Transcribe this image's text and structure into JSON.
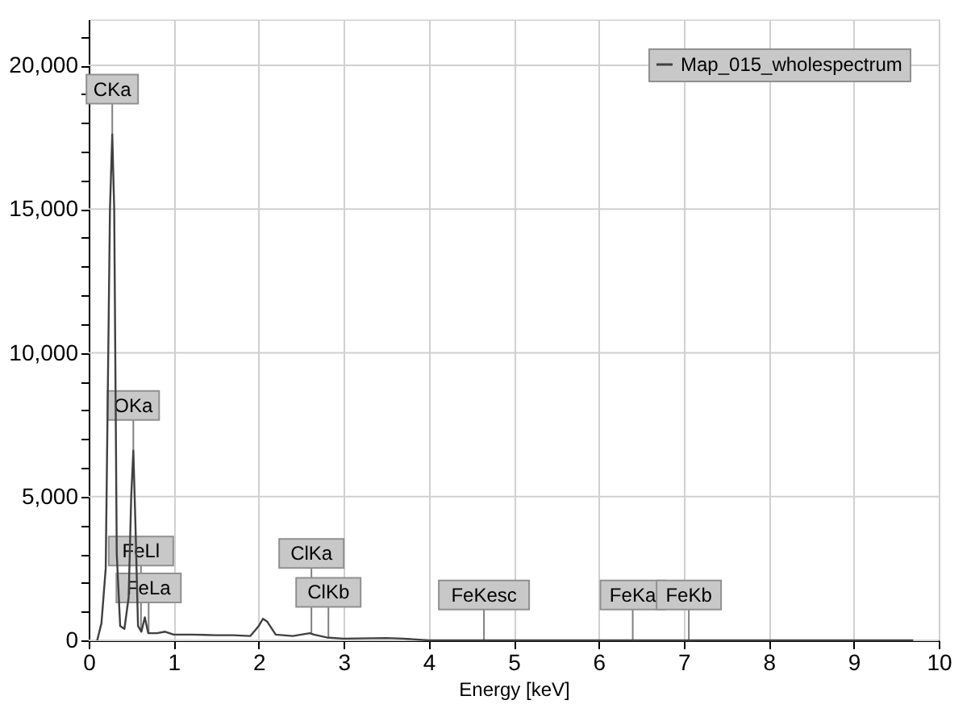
{
  "chart_data": {
    "type": "line",
    "xlabel": "Energy [keV]",
    "x": [
      0.1,
      0.15,
      0.2,
      0.25,
      0.277,
      0.3,
      0.33,
      0.37,
      0.42,
      0.47,
      0.5,
      0.525,
      0.55,
      0.58,
      0.62,
      0.66,
      0.7,
      0.8,
      0.9,
      1.0,
      1.2,
      1.5,
      1.7,
      1.9,
      2.0,
      2.05,
      2.1,
      2.2,
      2.4,
      2.6,
      2.65,
      2.8,
      3.0,
      3.5,
      3.7,
      4.0,
      5.0,
      6.0,
      7.0,
      8.0,
      9.0,
      9.7
    ],
    "series": [
      {
        "name": "Map_015_wholespectrum",
        "color": "#404040",
        "values": [
          0,
          600,
          2500,
          15000,
          17600,
          15000,
          3000,
          500,
          400,
          1500,
          5000,
          6600,
          4000,
          500,
          300,
          800,
          250,
          250,
          300,
          200,
          200,
          180,
          180,
          150,
          500,
          750,
          650,
          200,
          150,
          250,
          200,
          100,
          60,
          80,
          60,
          0,
          0,
          0,
          0,
          0,
          0,
          0
        ]
      }
    ],
    "xlim": [
      0,
      10
    ],
    "xticks": [
      0,
      1,
      2,
      3,
      4,
      5,
      6,
      7,
      8,
      9,
      10
    ],
    "ylim": [
      0,
      21600
    ],
    "yticks": [
      {
        "value": 0,
        "label": "0"
      },
      {
        "value": 1000,
        "label": null
      },
      {
        "value": 2000,
        "label": null
      },
      {
        "value": 3000,
        "label": null
      },
      {
        "value": 4000,
        "label": null
      },
      {
        "value": 5000,
        "label": "5,000"
      },
      {
        "value": 6000,
        "label": null
      },
      {
        "value": 7000,
        "label": null
      },
      {
        "value": 8000,
        "label": null
      },
      {
        "value": 9000,
        "label": null
      },
      {
        "value": 10000,
        "label": "10,000"
      },
      {
        "value": 11000,
        "label": null
      },
      {
        "value": 12000,
        "label": null
      },
      {
        "value": 13000,
        "label": null
      },
      {
        "value": 14000,
        "label": null
      },
      {
        "value": 15000,
        "label": "15,000"
      },
      {
        "value": 16000,
        "label": null
      },
      {
        "value": 17000,
        "label": null
      },
      {
        "value": 18000,
        "label": null
      },
      {
        "value": 19000,
        "label": null
      },
      {
        "value": 20000,
        "label": "20,000"
      },
      {
        "value": 21000,
        "label": null
      }
    ],
    "grid": true,
    "legend": "top right",
    "marker": "none",
    "line_style": "solid",
    "annotations": [
      {
        "text": "CKa",
        "x": 0.277,
        "y": 17600
      },
      {
        "text": "OKa",
        "x": 0.525,
        "y": 6600
      },
      {
        "text": "FeLl",
        "x": 0.615,
        "y": 300
      },
      {
        "text": "FeLa",
        "x": 0.705,
        "y": 250
      },
      {
        "text": "ClKa",
        "x": 2.62,
        "y": 220
      },
      {
        "text": "ClKb",
        "x": 2.82,
        "y": 100
      },
      {
        "text": "FeKesc",
        "x": 4.65,
        "y": 10
      },
      {
        "text": "FeKa",
        "x": 6.4,
        "y": 10
      },
      {
        "text": "FeKb",
        "x": 7.06,
        "y": 5
      }
    ]
  }
}
